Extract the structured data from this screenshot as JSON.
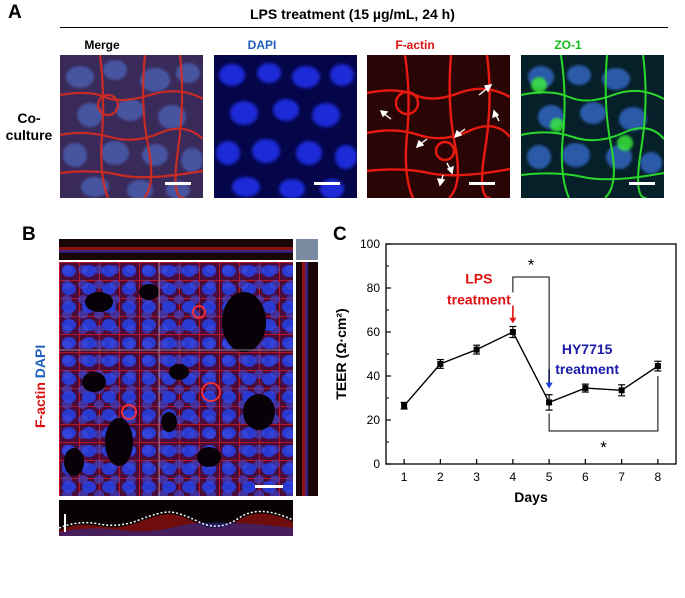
{
  "panel_a": {
    "letter": "A",
    "header": "LPS treatment (15 µg/mL, 24 h)",
    "row_label": [
      "Co-",
      "culture"
    ],
    "columns": [
      {
        "label": "Merge",
        "color": "#000000"
      },
      {
        "label": "DAPI",
        "color": "#1f5fbf"
      },
      {
        "label": "F-actin",
        "color": "#e01010"
      },
      {
        "label": "ZO-1",
        "color": "#14b814"
      }
    ]
  },
  "panel_b": {
    "letter": "B",
    "label_factin": "F-actin",
    "label_dapi": "DAPI",
    "factin_color": "#e01010",
    "dapi_color": "#1f5fbf"
  },
  "panel_c": {
    "letter": "C"
  },
  "chart_data": {
    "type": "line",
    "xlabel": "Days",
    "ylabel": "TEER (Ω·cm²)",
    "x": [
      1,
      2,
      3,
      4,
      5,
      6,
      7,
      8
    ],
    "values": [
      26.5,
      45.5,
      52,
      60,
      28,
      34.5,
      33.5,
      44.5
    ],
    "errors": [
      1.5,
      2,
      2,
      2.5,
      3.5,
      1.8,
      2.5,
      2.2
    ],
    "xlim": [
      0.5,
      8.5
    ],
    "ylim": [
      0,
      100
    ],
    "yticks": [
      0,
      20,
      40,
      60,
      80,
      100
    ],
    "grid": false,
    "annotations": [
      {
        "text": [
          "LPS",
          "treatment"
        ],
        "color": "#e01010",
        "day": 4
      },
      {
        "text": [
          "HY7715",
          "treatment"
        ],
        "color": "#1a1aa8",
        "day": 5
      }
    ],
    "significance": [
      {
        "from": 4,
        "to": 5,
        "mark": "*"
      },
      {
        "from": 5,
        "to": 8,
        "mark": "*"
      }
    ]
  }
}
